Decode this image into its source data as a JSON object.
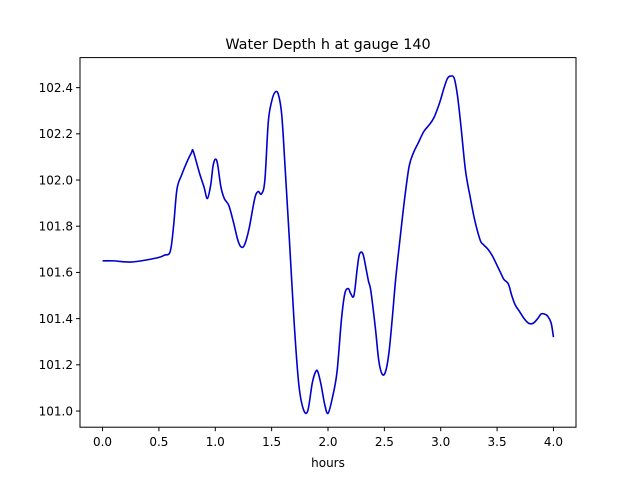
{
  "chart_data": {
    "type": "line",
    "title": "Water Depth h at gauge 140",
    "xlabel": "hours",
    "ylabel": "",
    "xlim": [
      -0.2,
      4.2
    ],
    "ylim": [
      100.93,
      102.53
    ],
    "xticks": [
      0.0,
      0.5,
      1.0,
      1.5,
      2.0,
      2.5,
      3.0,
      3.5,
      4.0
    ],
    "xtick_labels": [
      "0.0",
      "0.5",
      "1.0",
      "1.5",
      "2.0",
      "2.5",
      "3.0",
      "3.5",
      "4.0"
    ],
    "yticks": [
      101.0,
      101.2,
      101.4,
      101.6,
      101.8,
      102.0,
      102.2,
      102.4
    ],
    "ytick_labels": [
      "101.0",
      "101.2",
      "101.4",
      "101.6",
      "101.8",
      "102.0",
      "102.2",
      "102.4"
    ],
    "grid": false,
    "legend": "none",
    "series": [
      {
        "color": "#0000cc",
        "x": [
          0.0,
          0.1,
          0.25,
          0.4,
          0.5,
          0.55,
          0.6,
          0.63,
          0.66,
          0.7,
          0.75,
          0.79,
          0.8,
          0.82,
          0.86,
          0.9,
          0.93,
          0.96,
          0.98,
          1.0,
          1.02,
          1.05,
          1.08,
          1.12,
          1.16,
          1.2,
          1.23,
          1.26,
          1.3,
          1.35,
          1.38,
          1.41,
          1.44,
          1.47,
          1.5,
          1.53,
          1.56,
          1.59,
          1.62,
          1.66,
          1.7,
          1.74,
          1.78,
          1.82,
          1.86,
          1.89,
          1.91,
          1.94,
          1.97,
          2.0,
          2.04,
          2.08,
          2.12,
          2.15,
          2.18,
          2.2,
          2.23,
          2.26,
          2.28,
          2.31,
          2.34,
          2.36,
          2.38,
          2.42,
          2.45,
          2.48,
          2.51,
          2.54,
          2.57,
          2.6,
          2.64,
          2.68,
          2.72,
          2.76,
          2.8,
          2.85,
          2.9,
          2.94,
          2.98,
          3.0,
          3.03,
          3.06,
          3.09,
          3.12,
          3.15,
          3.18,
          3.22,
          3.26,
          3.3,
          3.35,
          3.38,
          3.42,
          3.46,
          3.5,
          3.53,
          3.56,
          3.6,
          3.63,
          3.66,
          3.7,
          3.74,
          3.78,
          3.82,
          3.86,
          3.89,
          3.92,
          3.95,
          3.98,
          4.0
        ],
        "y": [
          101.65,
          101.65,
          101.645,
          101.655,
          101.665,
          101.675,
          101.69,
          101.8,
          101.96,
          102.02,
          102.08,
          102.12,
          102.13,
          102.1,
          102.03,
          101.97,
          101.92,
          101.98,
          102.06,
          102.09,
          102.07,
          101.97,
          101.92,
          101.89,
          101.82,
          101.74,
          101.71,
          101.72,
          101.79,
          101.92,
          101.95,
          101.94,
          102.0,
          102.25,
          102.34,
          102.38,
          102.37,
          102.28,
          102.05,
          101.72,
          101.38,
          101.12,
          101.01,
          101.0,
          101.12,
          101.17,
          101.17,
          101.11,
          101.03,
          100.99,
          101.06,
          101.17,
          101.4,
          101.51,
          101.53,
          101.51,
          101.5,
          101.62,
          101.68,
          101.68,
          101.61,
          101.56,
          101.52,
          101.36,
          101.22,
          101.16,
          101.17,
          101.25,
          101.4,
          101.57,
          101.75,
          101.92,
          102.06,
          102.12,
          102.16,
          102.21,
          102.24,
          102.27,
          102.32,
          102.35,
          102.4,
          102.44,
          102.45,
          102.44,
          102.36,
          102.23,
          102.04,
          101.93,
          101.83,
          101.74,
          101.72,
          101.7,
          101.67,
          101.63,
          101.6,
          101.57,
          101.55,
          101.5,
          101.46,
          101.43,
          101.4,
          101.38,
          101.38,
          101.4,
          101.42,
          101.42,
          101.41,
          101.38,
          101.32
        ]
      }
    ]
  }
}
